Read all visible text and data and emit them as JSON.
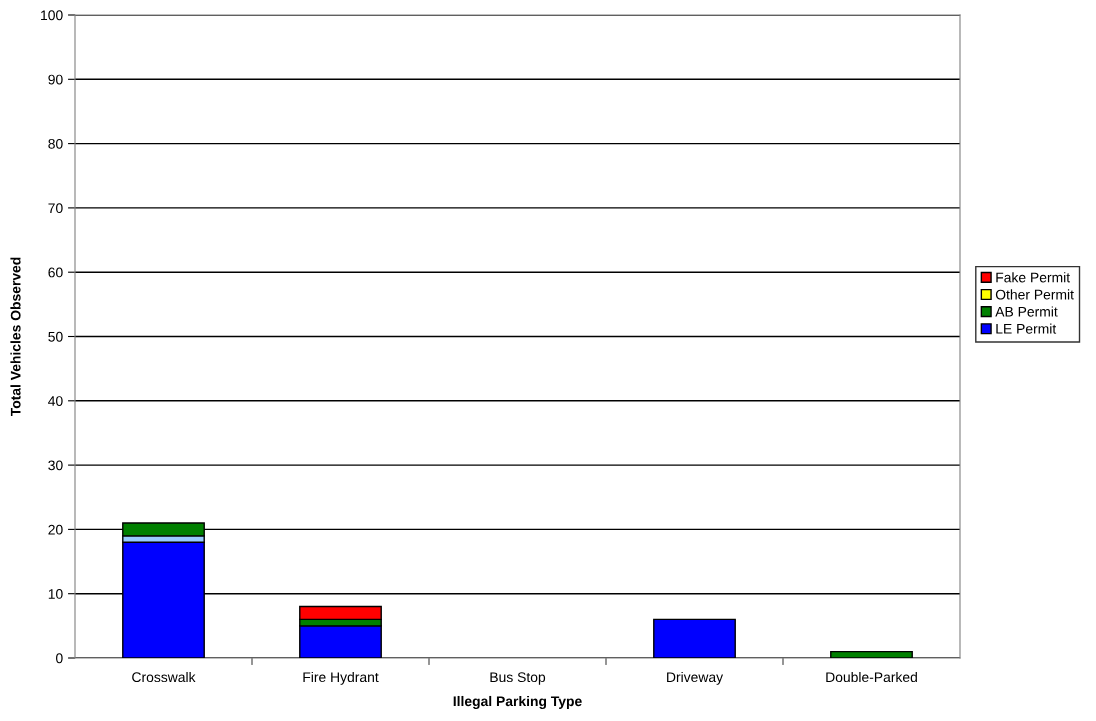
{
  "chart_data": {
    "type": "bar",
    "stacked": true,
    "xlabel": "Illegal Parking Type",
    "ylabel": "Total Vehicles Observed",
    "categories": [
      "Crosswalk",
      "Fire Hydrant",
      "Bus Stop",
      "Driveway",
      "Double-Parked"
    ],
    "series": [
      {
        "name": "LE Permit",
        "color": "#0000ff",
        "values": [
          18,
          5,
          null,
          6,
          null
        ]
      },
      {
        "color": "#99ccff",
        "values": [
          1,
          null,
          null,
          null,
          null
        ]
      },
      {
        "name": "AB Permit",
        "color": "#008000",
        "values": [
          2,
          1,
          null,
          null,
          1
        ]
      },
      {
        "name": "Other Permit",
        "color": "#ffff00",
        "values": [
          null,
          null,
          null,
          null,
          null
        ]
      },
      {
        "name": "Fake Permit",
        "color": "#ff0000",
        "values": [
          null,
          2,
          null,
          null,
          null
        ]
      }
    ],
    "ylim": [
      0,
      100
    ],
    "yticks": [
      0,
      10,
      20,
      30,
      40,
      50,
      60,
      70,
      80,
      90,
      100
    ],
    "grid": "y",
    "legend": "right"
  }
}
